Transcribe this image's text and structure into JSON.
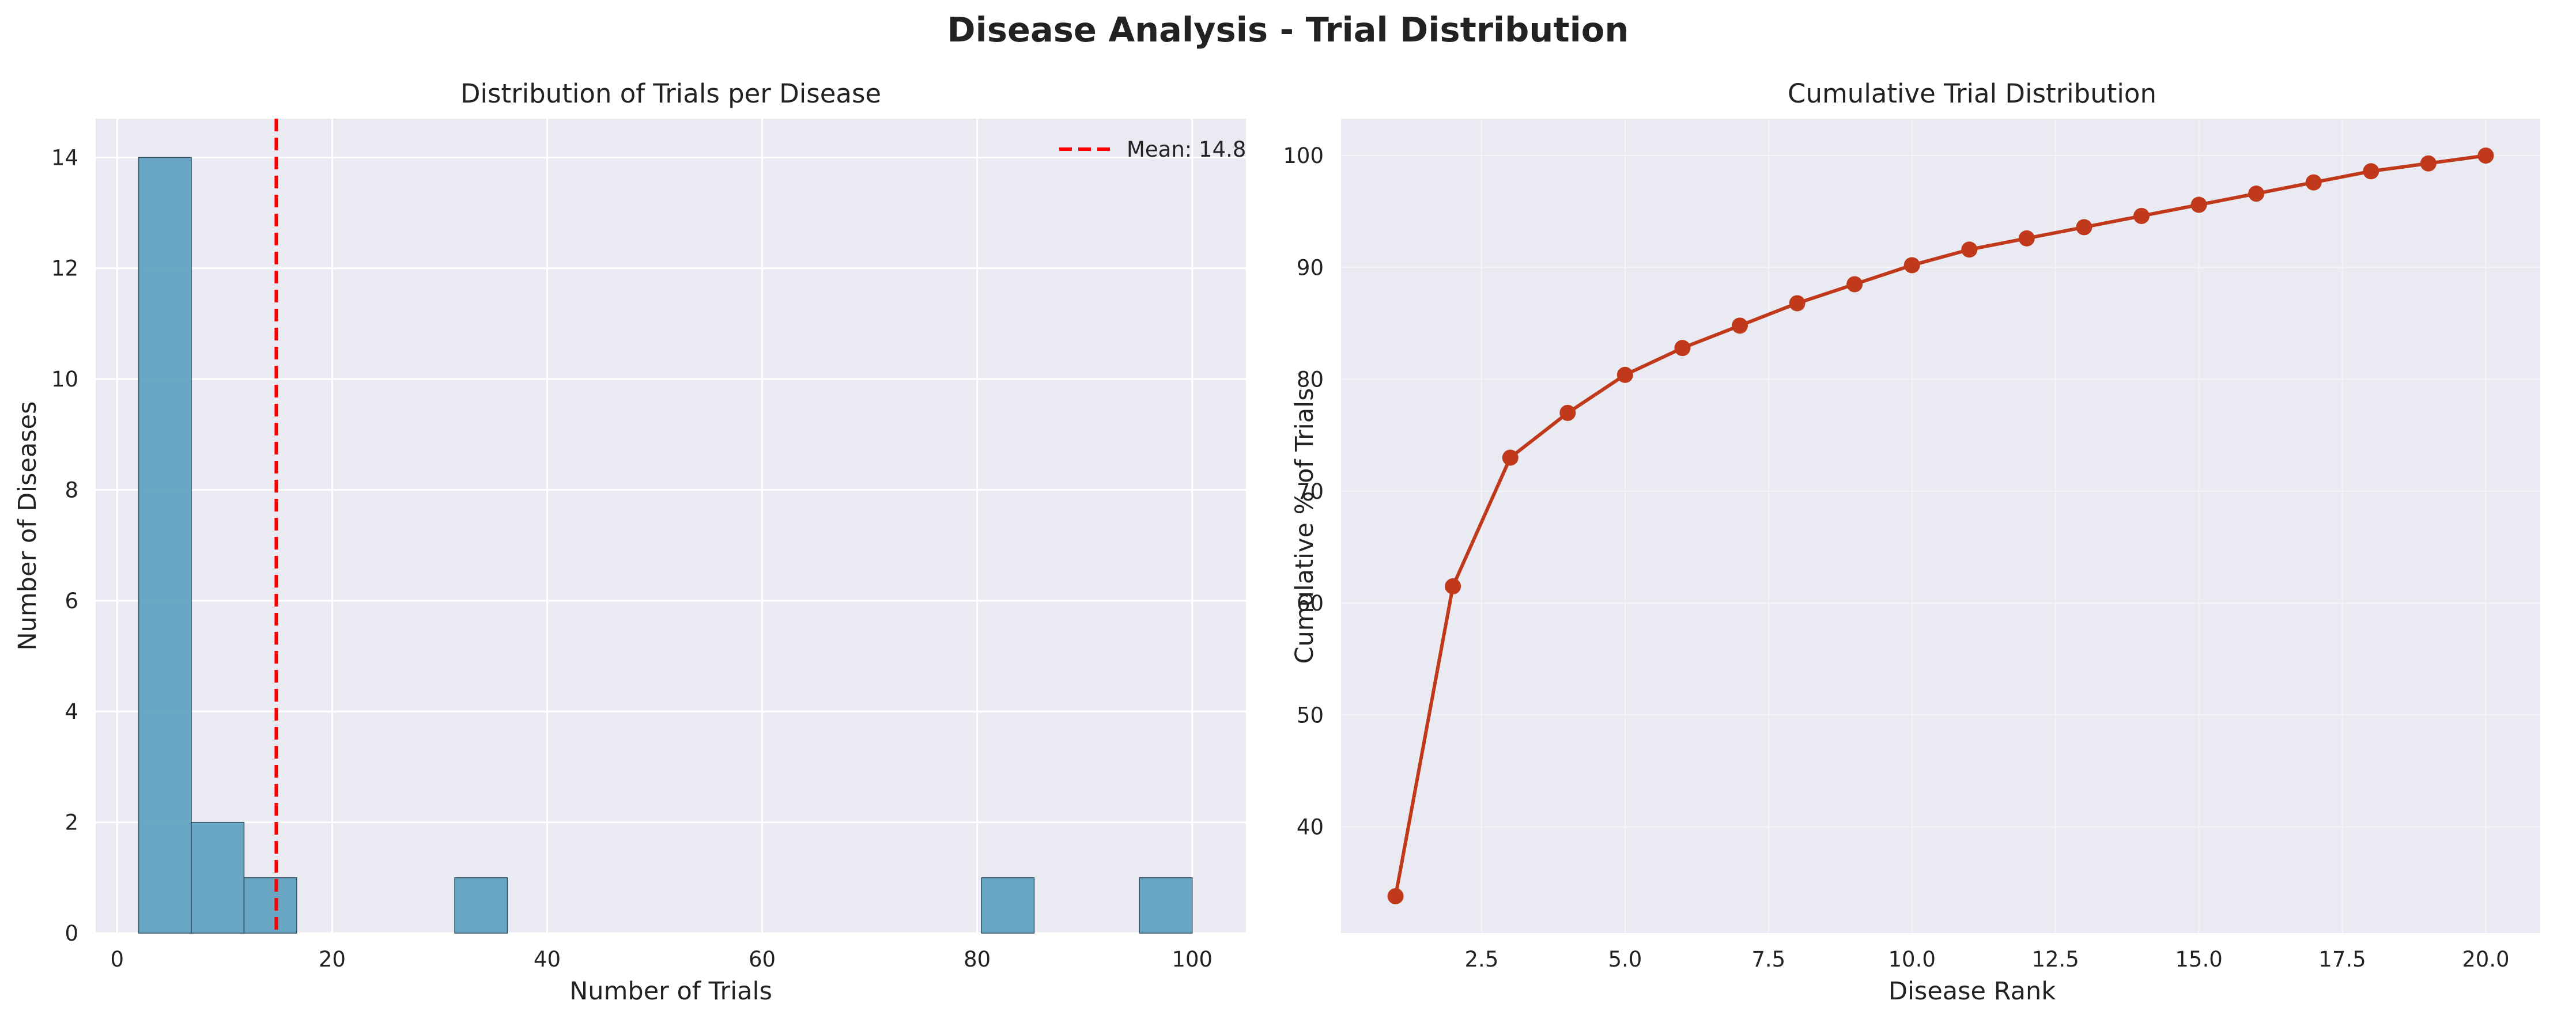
{
  "suptitle": "Disease Analysis - Trial Distribution",
  "chart_data": [
    {
      "type": "histogram",
      "title": "Distribution of Trials per Disease",
      "xlabel": "Number of Trials",
      "ylabel": "Number of Diseases",
      "xlim": [
        -2,
        105
      ],
      "ylim": [
        0,
        14.7
      ],
      "xticks": [
        0,
        20,
        40,
        60,
        80,
        100
      ],
      "yticks": [
        0,
        2,
        4,
        6,
        8,
        10,
        12,
        14
      ],
      "bins": [
        {
          "x0": 2,
          "x1": 6.9,
          "count": 14
        },
        {
          "x0": 6.9,
          "x1": 11.8,
          "count": 2
        },
        {
          "x0": 11.8,
          "x1": 16.7,
          "count": 1
        },
        {
          "x0": 31.4,
          "x1": 36.3,
          "count": 1
        },
        {
          "x0": 80.4,
          "x1": 85.3,
          "count": 1
        },
        {
          "x0": 95.1,
          "x1": 100,
          "count": 1
        }
      ],
      "bar_color": "#5b9fbe",
      "mean_line": {
        "value": 14.8,
        "label": "Mean: 14.8",
        "color": "#ff0000"
      },
      "legend_position": "top-right",
      "grid": true
    },
    {
      "type": "line",
      "title": "Cumulative Trial Distribution",
      "xlabel": "Disease Rank",
      "ylabel": "Cumulative % of Trials",
      "xlim": [
        0.05,
        20.95
      ],
      "ylim": [
        30.5,
        103.3
      ],
      "xticks": [
        "2.5",
        "5.0",
        "7.5",
        "10.0",
        "12.5",
        "15.0",
        "17.5",
        "20.0"
      ],
      "yticks": [
        "40",
        "50",
        "60",
        "70",
        "80",
        "90",
        "100"
      ],
      "x": [
        1,
        2,
        3,
        4,
        5,
        6,
        7,
        8,
        9,
        10,
        11,
        12,
        13,
        14,
        15,
        16,
        17,
        18,
        19,
        20
      ],
      "y": [
        33.8,
        61.5,
        73.0,
        77.0,
        80.4,
        82.8,
        84.8,
        86.8,
        88.5,
        90.2,
        91.6,
        92.6,
        93.6,
        94.6,
        95.6,
        96.6,
        97.6,
        98.6,
        99.3,
        100.0
      ],
      "line_color": "#c0391b",
      "grid": true
    }
  ]
}
